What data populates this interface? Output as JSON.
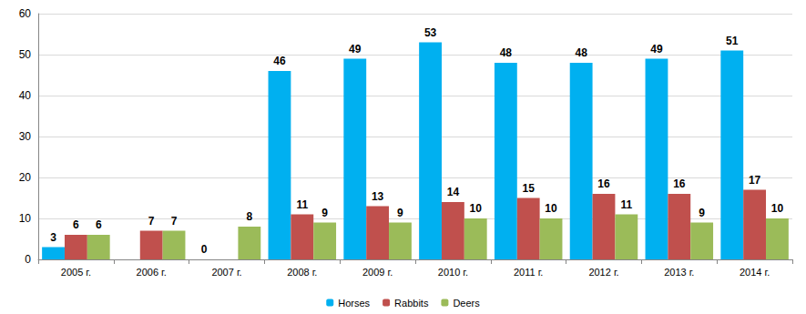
{
  "chart_data": {
    "type": "bar",
    "categories": [
      "2005 г.",
      "2006 г.",
      "2007 г.",
      "2008 г.",
      "2009 г.",
      "2010 г.",
      "2011 г.",
      "2012 г.",
      "2013 г.",
      "2014 г."
    ],
    "series": [
      {
        "name": "Horses",
        "color": "#00b0f0",
        "values": [
          3,
          null,
          0,
          46,
          49,
          53,
          48,
          48,
          49,
          51
        ]
      },
      {
        "name": "Rabbits",
        "color": "#c0504d",
        "values": [
          6,
          7,
          null,
          11,
          13,
          14,
          15,
          16,
          16,
          17
        ]
      },
      {
        "name": "Deers",
        "color": "#9bbb59",
        "values": [
          6,
          7,
          8,
          9,
          9,
          10,
          10,
          11,
          9,
          10
        ]
      }
    ],
    "ylim": [
      0,
      60
    ],
    "yticks": [
      0,
      10,
      20,
      30,
      40,
      50,
      60
    ],
    "grid": true,
    "legend": "bottom",
    "data_labels": true
  }
}
